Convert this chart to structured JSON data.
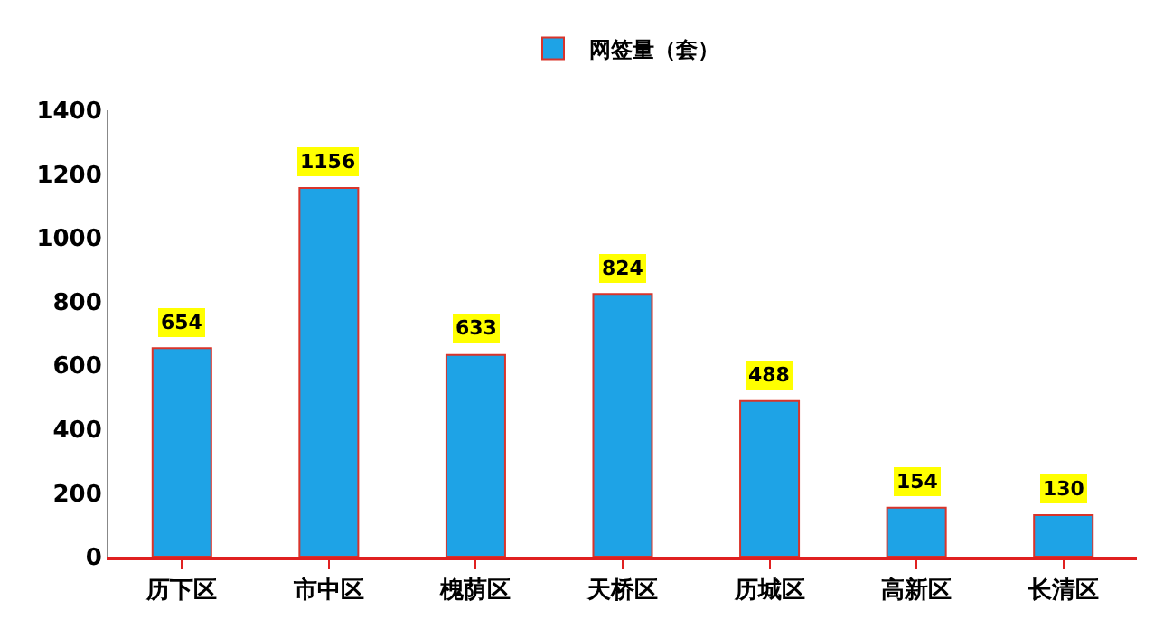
{
  "chart_data": {
    "type": "bar",
    "categories": [
      "历下区",
      "市中区",
      "槐荫区",
      "天桥区",
      "历城区",
      "高新区",
      "长清区"
    ],
    "series": [
      {
        "name": "网签量（套）",
        "color": "#1ea3e6",
        "values": [
          654,
          1156,
          633,
          824,
          488,
          154,
          130
        ]
      }
    ],
    "ylim": [
      0,
      1400
    ],
    "yticks": [
      0,
      200,
      400,
      600,
      800,
      1000,
      1200,
      1400
    ],
    "grid": false,
    "legend": "top",
    "data_labels": true
  }
}
